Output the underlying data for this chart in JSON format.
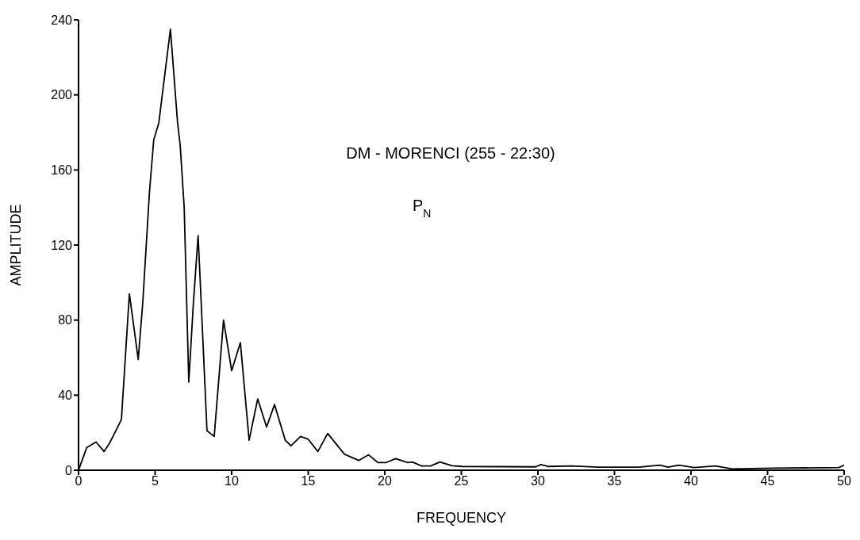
{
  "chart_data": {
    "type": "line",
    "title": "DM - MORENCI (255 - 22:30)",
    "annotations": [
      "P$_{N}$"
    ],
    "xlabel": "FREQUENCY",
    "ylabel": "AMPLITUDE",
    "x": [
      0,
      0.53,
      1.14,
      1.67,
      2.0,
      2.8,
      3.32,
      3.9,
      4.2,
      4.63,
      4.91,
      5.24,
      6.0,
      6.47,
      6.64,
      6.9,
      7.2,
      7.5,
      7.81,
      7.95,
      8.39,
      8.86,
      9.47,
      10.0,
      10.57,
      11.14,
      11.7,
      12.28,
      12.8,
      13.5,
      13.88,
      14.5,
      15.0,
      15.63,
      16.27,
      17.37,
      18.3,
      18.94,
      19.55,
      20.1,
      20.7,
      21.5,
      21.8,
      22.4,
      23.0,
      23.6,
      24.4,
      25.05,
      29.85,
      30.2,
      30.7,
      32.2,
      33.95,
      36.6,
      37.97,
      38.5,
      39.2,
      40.2,
      41.6,
      42.7,
      45.3,
      49.66,
      50
    ],
    "series": [
      {
        "color": "#000000",
        "values": [
          0,
          12,
          15,
          10,
          14,
          27,
          94,
          59,
          90,
          148,
          176,
          185,
          235,
          185,
          173,
          140,
          47,
          89,
          125,
          100,
          21,
          18,
          80,
          53,
          68,
          16,
          38,
          23,
          35,
          16,
          13,
          18,
          16.5,
          10,
          19.6,
          8.5,
          5.2,
          8.2,
          4.1,
          4.1,
          6.2,
          4.1,
          4.4,
          2.3,
          2.3,
          4.4,
          2.4,
          2,
          1.8,
          3,
          2,
          2.3,
          1.6,
          1.6,
          2.7,
          1.6,
          2.7,
          1.4,
          2.3,
          0.7,
          1.1,
          1.4,
          2.7
        ]
      }
    ],
    "xlim": [
      0,
      50
    ],
    "xticks": [
      0,
      5,
      10,
      15,
      20,
      25,
      30,
      35,
      40,
      45,
      50
    ],
    "ylim": [
      0,
      240
    ],
    "yticks": [
      0,
      40,
      80,
      120,
      160,
      200,
      240
    ],
    "grid": false,
    "legend": false,
    "marker": "none",
    "line_style": "solid"
  }
}
